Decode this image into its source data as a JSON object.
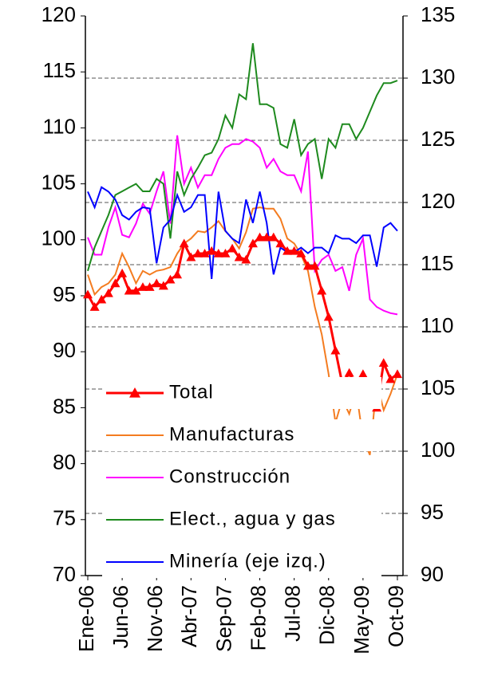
{
  "chart_data": {
    "type": "line",
    "categories": [
      "Ene-06",
      null,
      null,
      null,
      null,
      "Jun-06",
      null,
      null,
      null,
      null,
      "Nov-06",
      null,
      null,
      null,
      null,
      "Abr-07",
      null,
      null,
      null,
      null,
      "Sep-07",
      null,
      null,
      null,
      null,
      "Feb-08",
      null,
      null,
      null,
      null,
      "Jul-08",
      null,
      null,
      null,
      null,
      "Dic-08",
      null,
      null,
      null,
      null,
      "May-09",
      null,
      null,
      null,
      null,
      "Oct-09"
    ],
    "series": [
      {
        "name": "Total",
        "color": "#ff0000",
        "axis": "y2",
        "marker": "triangle",
        "values": [
          112.6,
          111.6,
          112.2,
          112.7,
          113.5,
          114.3,
          112.9,
          112.9,
          113.2,
          113.2,
          113.5,
          113.3,
          113.8,
          114.2,
          116.7,
          115.6,
          115.9,
          115.9,
          116.1,
          115.9,
          115.9,
          116.3,
          115.6,
          115.4,
          116.7,
          117.2,
          117.2,
          117.2,
          116.7,
          116.1,
          116.1,
          115.9,
          114.9,
          114.9,
          112.9,
          110.8,
          108.1,
          105.4,
          106.3,
          105.2,
          106.2,
          104.4,
          103.5,
          107.1,
          105.8,
          106.2
        ]
      },
      {
        "name": "Manufacturas",
        "color": "#f47c20",
        "axis": "y2",
        "values": [
          114.2,
          112.6,
          113.2,
          113.5,
          114.2,
          115.9,
          114.8,
          113.5,
          114.5,
          114.2,
          114.5,
          114.6,
          114.8,
          115.9,
          116.7,
          117.1,
          117.7,
          117.6,
          118.0,
          118.5,
          117.7,
          117.1,
          116.3,
          117.6,
          119.5,
          119.6,
          119.5,
          119.5,
          118.7,
          117.1,
          116.7,
          115.8,
          114.5,
          111.6,
          109.4,
          106.2,
          102.3,
          104.2,
          103.0,
          104.9,
          101.0,
          99.7,
          105.5,
          103.3,
          104.6,
          106.2
        ]
      },
      {
        "name": "Construcción",
        "color": "#ff00ff",
        "axis": "y2",
        "values": [
          117.2,
          115.8,
          115.8,
          118.0,
          119.6,
          117.4,
          117.2,
          118.3,
          119.9,
          119.1,
          120.9,
          122.5,
          118.3,
          125.4,
          121.5,
          122.8,
          121.2,
          122.2,
          122.2,
          123.5,
          124.4,
          124.7,
          124.7,
          125.1,
          124.9,
          124.4,
          122.8,
          123.5,
          122.5,
          122.2,
          122.2,
          120.9,
          124.1,
          114.5,
          115.4,
          115.8,
          114.5,
          114.8,
          112.9,
          115.8,
          117.1,
          112.2,
          111.6,
          111.3,
          111.1,
          111.0
        ]
      },
      {
        "name": "Elect., agua y gas",
        "color": "#1e8a1e",
        "axis": "y2",
        "values": [
          114.5,
          116.4,
          117.7,
          119.0,
          120.6,
          120.9,
          121.2,
          121.5,
          120.9,
          120.9,
          121.9,
          121.5,
          117.1,
          122.5,
          120.6,
          121.9,
          122.8,
          123.8,
          124.0,
          125.1,
          127.0,
          126.0,
          128.7,
          128.3,
          132.8,
          127.9,
          127.9,
          127.6,
          124.7,
          124.4,
          126.7,
          123.8,
          124.7,
          125.1,
          121.9,
          125.1,
          124.4,
          126.3,
          126.3,
          125.1,
          126.0,
          127.3,
          128.6,
          129.6,
          129.6,
          129.8
        ]
      },
      {
        "name": "Minería (eje izq.)",
        "color": "#0000ff",
        "values": [
          104.3,
          102.9,
          104.7,
          104.3,
          103.6,
          102.2,
          101.8,
          102.5,
          102.9,
          102.8,
          97.9,
          101.1,
          101.8,
          104.0,
          102.5,
          102.9,
          104.0,
          104.0,
          96.5,
          104.3,
          100.8,
          100.1,
          99.7,
          103.6,
          101.5,
          104.3,
          101.5,
          96.9,
          99.3,
          98.9,
          98.9,
          99.3,
          98.8,
          99.3,
          99.3,
          98.8,
          100.4,
          100.1,
          100.1,
          99.7,
          100.4,
          100.4,
          97.6,
          101.1,
          101.5,
          100.8
        ]
      }
    ],
    "ylim": [
      70,
      120
    ],
    "yticks": [
      70,
      75,
      80,
      85,
      90,
      95,
      100,
      105,
      110,
      115,
      120
    ],
    "y2lim": [
      90,
      135
    ],
    "y2ticks": [
      90,
      95,
      100,
      105,
      110,
      115,
      120,
      125,
      130,
      135
    ],
    "grid": true,
    "legend": "lower left"
  }
}
